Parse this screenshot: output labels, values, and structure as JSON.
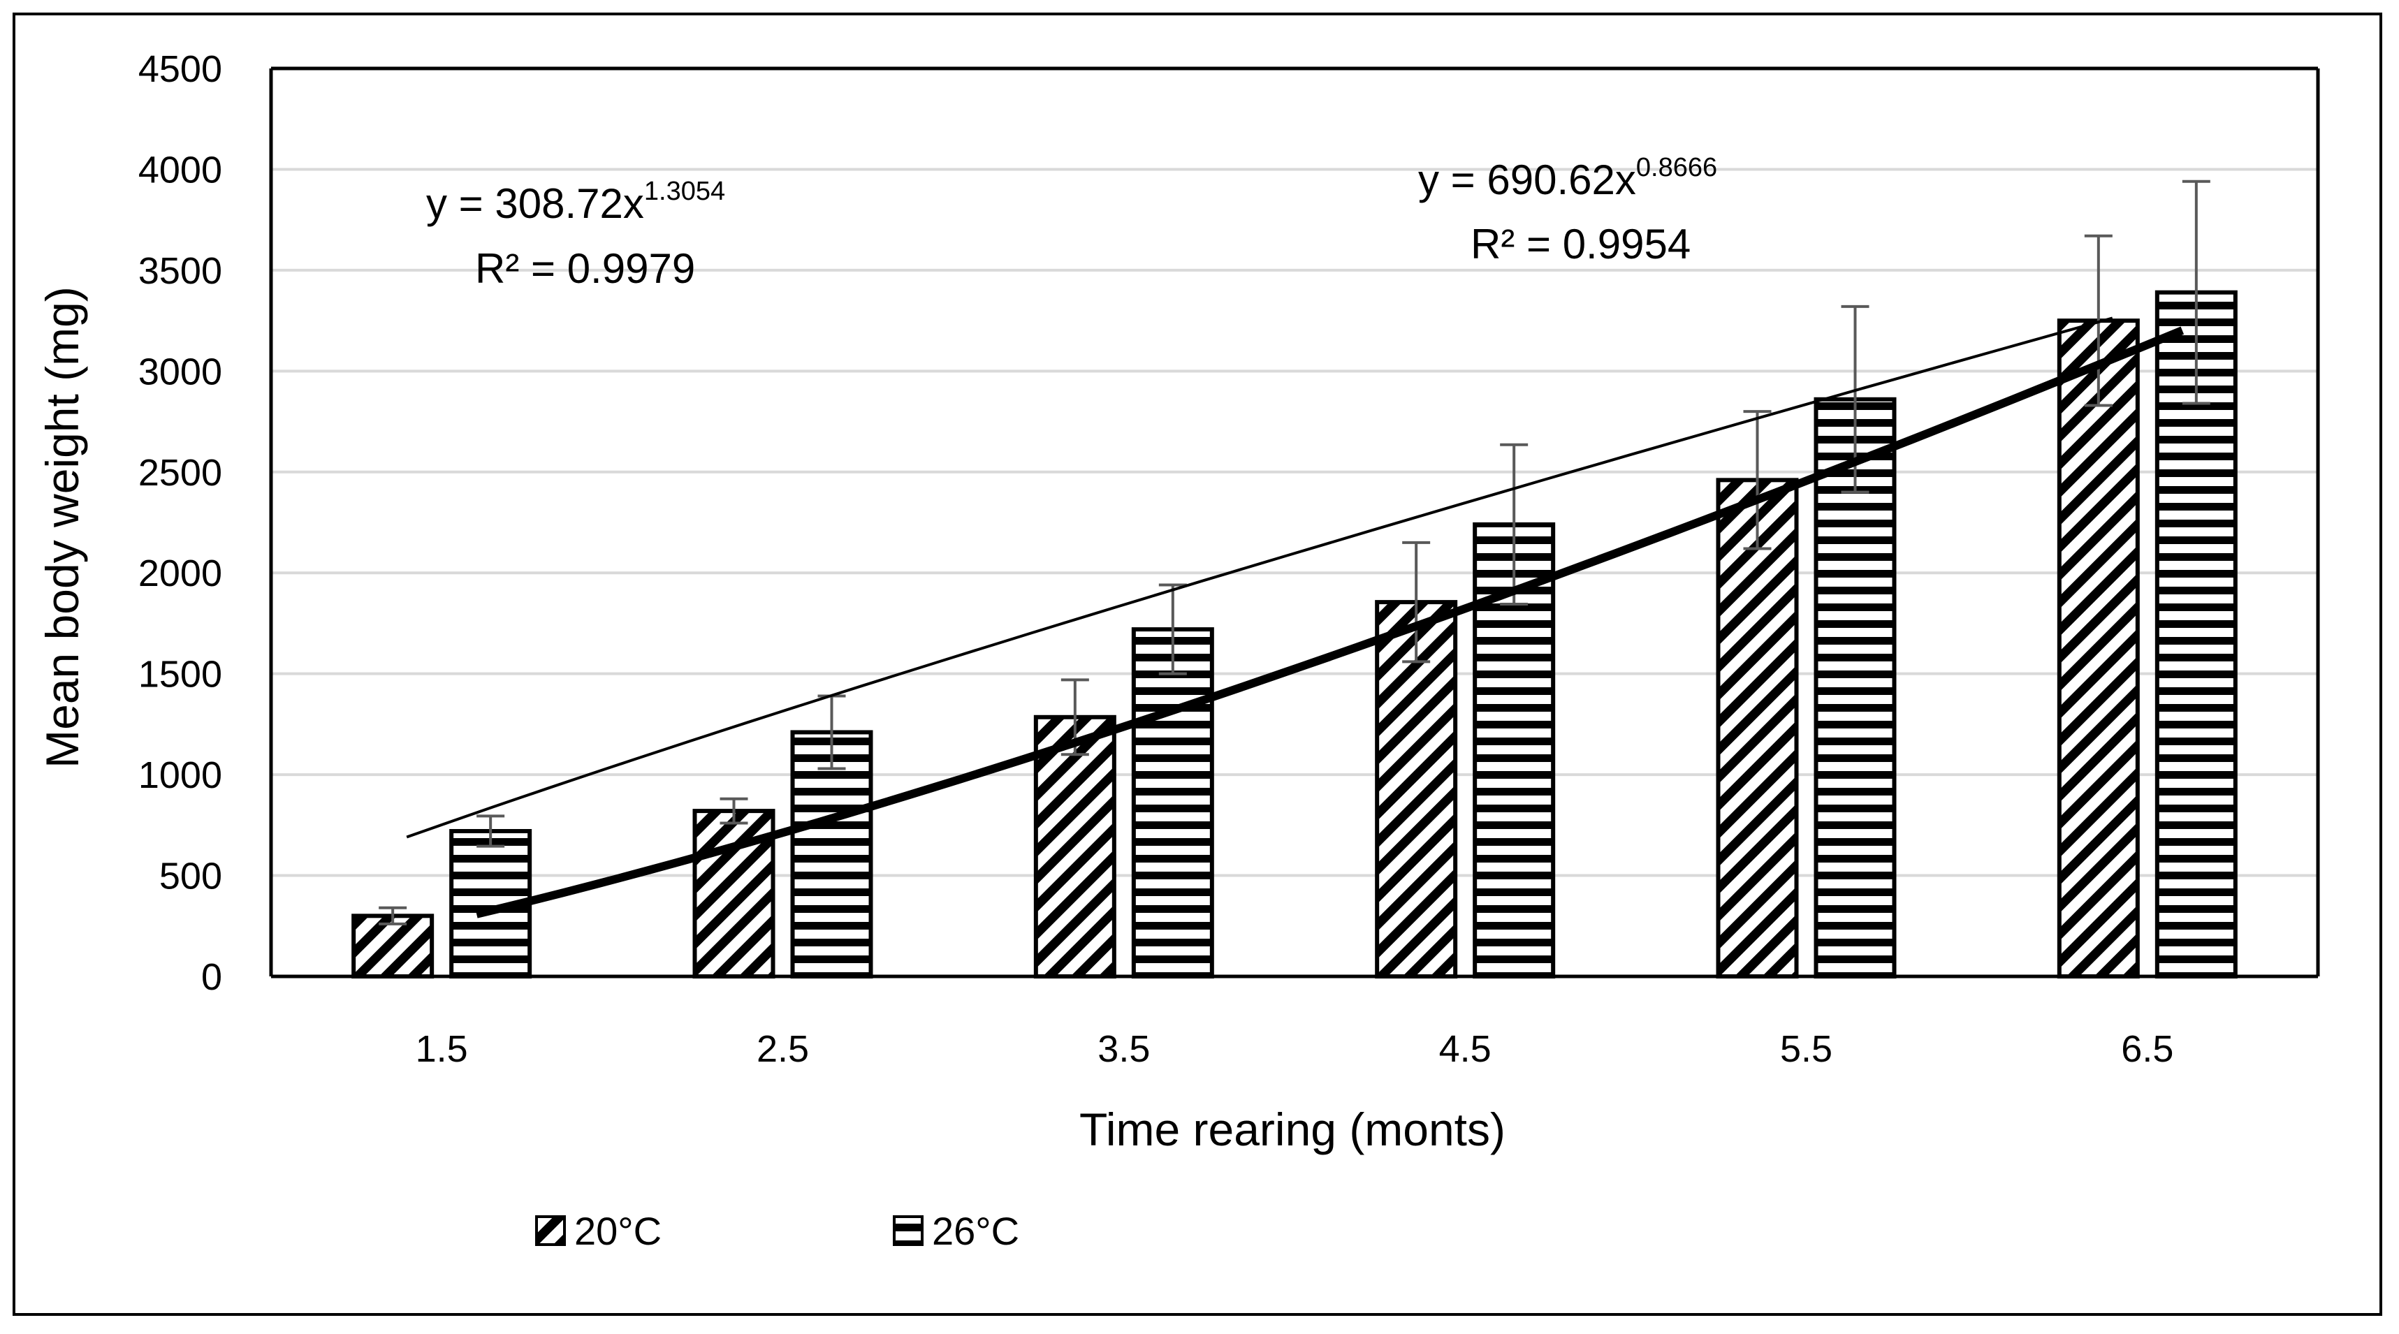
{
  "chart_data": {
    "type": "bar",
    "title": "",
    "xlabel": "Time rearing (monts)",
    "ylabel": "Mean body weight (mg)",
    "ylim": [
      0,
      4500
    ],
    "yticks": [
      "0",
      "500",
      "1000",
      "1500",
      "2000",
      "2500",
      "3000",
      "3500",
      "4000",
      "4500"
    ],
    "categories": [
      "1.5",
      "2.5",
      "3.5",
      "4.5",
      "5.5",
      "6.5"
    ],
    "grid": true,
    "legend_position": "bottom-left",
    "series": [
      {
        "name": "20°C",
        "pattern": "diagonal",
        "values": [
          300,
          820,
          1285,
          1855,
          2460,
          3250
        ],
        "error": [
          40,
          60,
          185,
          295,
          340,
          420
        ]
      },
      {
        "name": "26°C",
        "pattern": "horizontal",
        "values": [
          720,
          1210,
          1720,
          2240,
          2860,
          3390
        ],
        "error": [
          75,
          180,
          220,
          395,
          460,
          550
        ]
      }
    ],
    "trendlines": [
      {
        "series": "20°C",
        "style": "thick",
        "equation_prefix": "y = 308.72x",
        "exponent": "1.3054",
        "r2": "R² = 0.9979",
        "coefficient": 308.72,
        "power": 1.3054
      },
      {
        "series": "26°C",
        "style": "thin",
        "equation_prefix": "y = 690.62x",
        "exponent": "0.8666",
        "r2": "R² = 0.9954",
        "coefficient": 690.62,
        "power": 0.8666
      }
    ],
    "colors": {
      "bar_fill": "#ffffff",
      "bar_stroke": "#000000",
      "grid": "#d9d9d9",
      "error": "#595959",
      "trend": "#000000"
    }
  }
}
